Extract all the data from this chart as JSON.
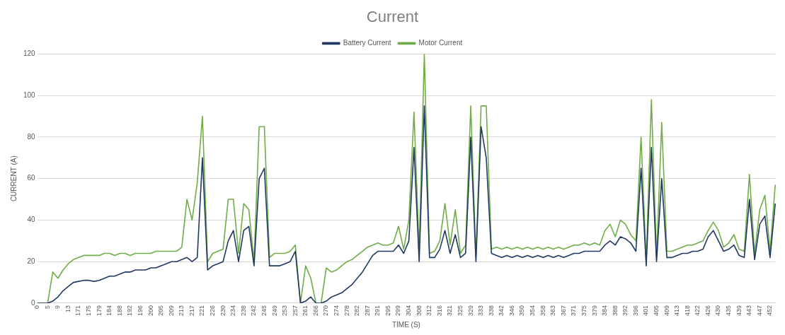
{
  "chart_data": {
    "type": "line",
    "title": "Current",
    "xlabel": "TIME (S)",
    "ylabel": "CURRENT (A)",
    "categories": [
      "0",
      null,
      "5",
      null,
      "9",
      null,
      "13",
      null,
      "171",
      null,
      "175",
      null,
      "179",
      null,
      "184",
      null,
      "188",
      null,
      "192",
      null,
      "196",
      null,
      "200",
      null,
      "205",
      null,
      "209",
      null,
      "213",
      null,
      "217",
      null,
      "221",
      null,
      "226",
      null,
      "230",
      null,
      "234",
      null,
      "238",
      null,
      "242",
      null,
      "245",
      null,
      "249",
      null,
      "253",
      null,
      "257",
      null,
      "261",
      null,
      "266",
      null,
      "270",
      null,
      "274",
      null,
      "278",
      null,
      "282",
      null,
      "287",
      null,
      "291",
      null,
      "295",
      null,
      "299",
      null,
      "304",
      null,
      "308",
      null,
      "312",
      null,
      "316",
      null,
      "321",
      null,
      "325",
      null,
      "329",
      null,
      "333",
      null,
      "338",
      null,
      "342",
      null,
      "346",
      null,
      "350",
      null,
      "354",
      null,
      "358",
      null,
      "363",
      null,
      "367",
      null,
      "371",
      null,
      "375",
      null,
      "379",
      null,
      "384",
      null,
      "388",
      null,
      "392",
      null,
      "396",
      null,
      "401",
      null,
      "405",
      null,
      "409",
      null,
      "413",
      null,
      "418",
      null,
      "422",
      null,
      "426",
      null,
      "430",
      null,
      "435",
      null,
      "439",
      null,
      "443",
      null,
      "447",
      null,
      "452",
      null
    ],
    "series": [
      {
        "name": "Battery Current",
        "color": "#203864",
        "values": [
          0,
          0,
          0,
          1,
          3,
          6,
          8,
          10,
          10.5,
          11,
          11,
          10.5,
          11,
          12,
          13,
          13,
          14,
          15,
          15,
          16,
          16,
          16,
          17,
          17,
          18,
          19,
          20,
          20,
          21,
          22,
          20,
          22,
          70,
          16,
          18,
          19,
          20,
          30,
          35,
          20,
          35,
          37,
          18,
          60,
          65,
          18,
          18,
          18,
          19,
          20,
          25,
          0,
          1,
          3,
          0,
          0,
          1,
          3,
          4,
          5,
          7,
          9,
          12,
          15,
          19,
          23,
          25,
          25,
          25,
          25,
          28,
          24,
          30,
          75,
          20,
          95,
          22,
          22,
          26,
          35,
          24,
          33,
          22,
          24,
          80,
          20,
          85,
          70,
          24,
          23,
          22,
          23,
          22,
          23,
          22,
          23,
          22,
          23,
          22,
          23,
          22,
          23,
          22,
          23,
          24,
          24,
          25,
          25,
          25,
          25,
          28,
          30,
          28,
          32,
          31,
          29,
          25,
          65,
          18,
          75,
          20,
          60,
          22,
          22,
          23,
          24,
          24,
          25,
          25,
          26,
          32,
          35,
          30,
          25,
          26,
          28,
          23,
          22,
          50,
          21,
          38,
          42,
          22,
          48
        ]
      },
      {
        "name": "Motor Current",
        "color": "#70ad47",
        "values": [
          0,
          0,
          0,
          15,
          12,
          16,
          19,
          21,
          22,
          23,
          23,
          23,
          23,
          24,
          24,
          23,
          24,
          24,
          23,
          24,
          24,
          24,
          24,
          25,
          25,
          25,
          25,
          25,
          27,
          50,
          40,
          58,
          90,
          20,
          24,
          25,
          26,
          50,
          50,
          24,
          48,
          45,
          20,
          85,
          85,
          22,
          24,
          24,
          24,
          25,
          28,
          0,
          18,
          12,
          0,
          0,
          17,
          15,
          16,
          18,
          20,
          21,
          23,
          25,
          27,
          28,
          29,
          28,
          28,
          29,
          37,
          26,
          40,
          92,
          25,
          120,
          24,
          25,
          30,
          48,
          28,
          45,
          24,
          28,
          95,
          22,
          95,
          95,
          26,
          27,
          26,
          27,
          26,
          27,
          26,
          27,
          26,
          27,
          26,
          27,
          26,
          27,
          26,
          27,
          28,
          28,
          29,
          28,
          29,
          28,
          35,
          38,
          32,
          40,
          38,
          33,
          30,
          80,
          20,
          98,
          22,
          87,
          25,
          25,
          26,
          27,
          28,
          28,
          29,
          30,
          35,
          39,
          35,
          27,
          29,
          33,
          26,
          25,
          62,
          24,
          45,
          52,
          25,
          57
        ]
      }
    ],
    "ylim": [
      0,
      120
    ],
    "yticks": [
      0,
      20,
      40,
      60,
      80,
      100,
      120
    ],
    "grid": "y",
    "legend": "top",
    "marker": "none",
    "line_style": "solid"
  }
}
